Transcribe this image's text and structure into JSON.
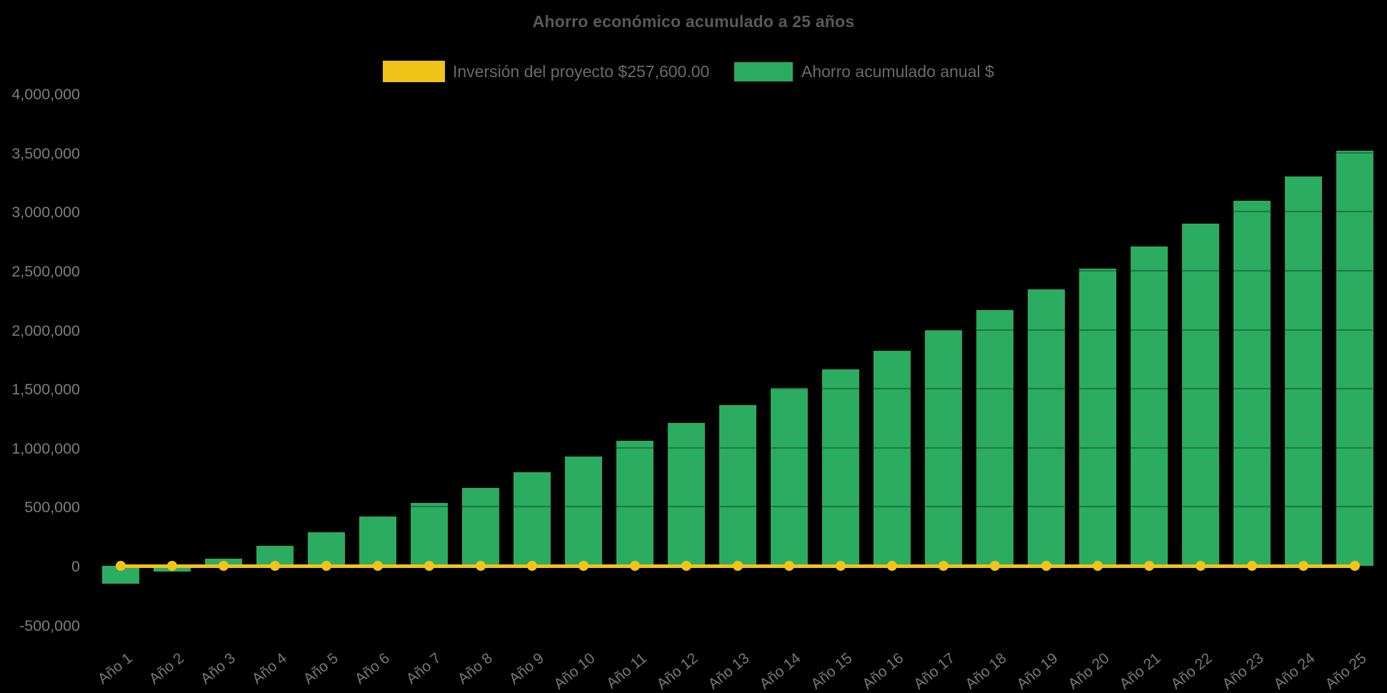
{
  "chart_data": {
    "type": "bar",
    "title": "Ahorro económico acumulado a 25 años",
    "categories": [
      "Año 1",
      "Año 2",
      "Año 3",
      "Año 4",
      "Año 5",
      "Año 6",
      "Año 7",
      "Año 8",
      "Año 9",
      "Año 10",
      "Año 11",
      "Año 12",
      "Año 13",
      "Año 14",
      "Año 15",
      "Año 16",
      "Año 17",
      "Año 18",
      "Año 19",
      "Año 20",
      "Año 21",
      "Año 22",
      "Año 23",
      "Año 24",
      "Año 25"
    ],
    "series": [
      {
        "name": "Inversión del proyecto $257,600.00",
        "type": "line",
        "color": "#F0C419",
        "marker": "circle",
        "values": [
          0,
          0,
          0,
          0,
          0,
          0,
          0,
          0,
          0,
          0,
          0,
          0,
          0,
          0,
          0,
          0,
          0,
          0,
          0,
          0,
          0,
          0,
          0,
          0,
          0
        ]
      },
      {
        "name": "Ahorro acumulado anual $",
        "type": "bar",
        "color": "#2BAC60",
        "values": [
          -150000,
          -48000,
          58000,
          170000,
          287000,
          417000,
          535000,
          660000,
          793000,
          926000,
          1060000,
          1210000,
          1360000,
          1505000,
          1665000,
          1825000,
          1995000,
          2165000,
          2340000,
          2520000,
          2705000,
          2900000,
          3095000,
          3300000,
          3515000
        ]
      }
    ],
    "ylim": [
      -500000,
      4000000
    ],
    "y_ticks": [
      {
        "label": "4,000,000",
        "value": 4000000
      },
      {
        "label": "3,500,000",
        "value": 3500000
      },
      {
        "label": "3,000,000",
        "value": 3000000
      },
      {
        "label": "2,500,000",
        "value": 2500000
      },
      {
        "label": "2,000,000",
        "value": 2000000
      },
      {
        "label": "1,500,000",
        "value": 1500000
      },
      {
        "label": "1,000,000",
        "value": 1000000
      },
      {
        "label": "500,000",
        "value": 500000
      },
      {
        "label": "0",
        "value": 0
      },
      {
        "label": "-500,000",
        "value": -500000
      }
    ],
    "x_tick_rotation_deg": -39,
    "legend_position": "top",
    "grid": "faint dark horizontal lines over bars",
    "background": "#000000"
  }
}
